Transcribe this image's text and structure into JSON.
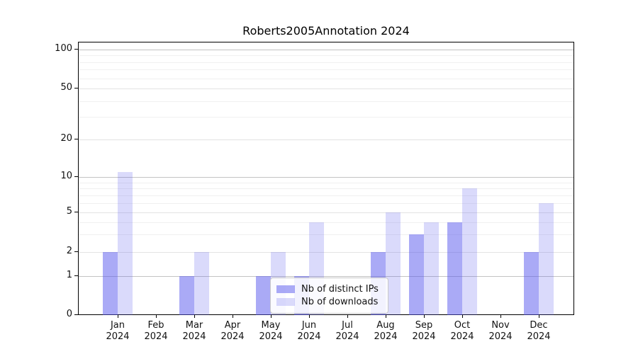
{
  "chart_data": {
    "type": "bar",
    "title": "Roberts2005Annotation 2024",
    "x_categories": [
      "Jan",
      "Feb",
      "Mar",
      "Apr",
      "May",
      "Jun",
      "Jul",
      "Aug",
      "Sep",
      "Oct",
      "Nov",
      "Dec"
    ],
    "x_year": "2024",
    "series": [
      {
        "name": "Nb of distinct IPs",
        "base_color": "#5555ee",
        "alpha": 0.5,
        "apparent_color": "#a9a9f4",
        "values": [
          2,
          0,
          1,
          0,
          1,
          1,
          0,
          2,
          3,
          4,
          0,
          2
        ]
      },
      {
        "name": "Nb of downloads",
        "base_color": "#5555ee",
        "alpha": 0.22,
        "apparent_color": "#d9d9fa",
        "values": [
          11,
          0,
          2,
          0,
          2,
          4,
          0,
          5,
          4,
          8,
          0,
          6
        ]
      }
    ],
    "y_axis": {
      "ticks": [
        100,
        50,
        20,
        10,
        5,
        2,
        1,
        0
      ],
      "scale": "log-like with 1-2-5 labeled ticks, 0 baseline",
      "min": 0,
      "max": 100
    },
    "grid": {
      "on": true,
      "major": [
        1,
        10,
        100
      ],
      "medium": [
        2,
        5,
        20,
        50
      ],
      "minor": [
        3,
        4,
        6,
        7,
        8,
        9,
        30,
        40,
        60,
        70,
        80,
        90
      ]
    },
    "legend": {
      "position": "inside lower-center",
      "entries": [
        "Nb of distinct IPs",
        "Nb of downloads"
      ]
    }
  }
}
